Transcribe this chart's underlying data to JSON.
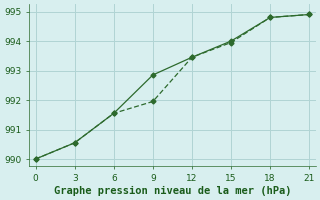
{
  "line1_x": [
    0,
    3,
    6,
    9,
    12,
    15,
    18,
    21
  ],
  "line1_y": [
    990.0,
    990.55,
    991.55,
    992.85,
    993.45,
    994.0,
    994.8,
    994.9
  ],
  "line2_x": [
    0,
    3,
    6,
    9,
    12,
    15,
    18,
    21
  ],
  "line2_y": [
    990.0,
    990.55,
    991.55,
    991.95,
    993.45,
    993.95,
    994.8,
    994.9
  ],
  "line_color": "#2d6a2d",
  "marker": "D",
  "marker_size": 2.5,
  "bg_color": "#d8efef",
  "grid_color": "#b0d4d4",
  "xlabel": "Graphe pression niveau de la mer (hPa)",
  "xlabel_color": "#1a5c1a",
  "xlabel_fontsize": 7.5,
  "xlim": [
    -0.5,
    21.5
  ],
  "ylim": [
    989.75,
    995.25
  ],
  "xticks": [
    0,
    3,
    6,
    9,
    12,
    15,
    18,
    21
  ],
  "yticks": [
    990,
    991,
    992,
    993,
    994,
    995
  ],
  "tick_fontsize": 6.5,
  "tick_color": "#1a5c1a",
  "line_width": 0.9,
  "spine_color": "#2d6a2d"
}
